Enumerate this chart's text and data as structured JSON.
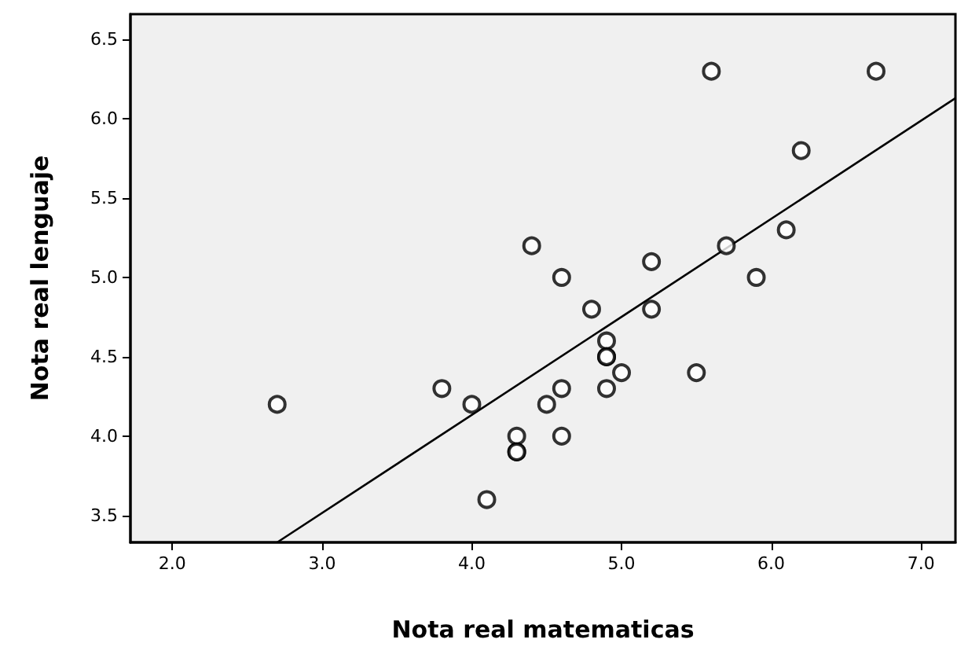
{
  "chart_data": {
    "type": "scatter",
    "xlabel": "Nota real matematicas",
    "ylabel": "Nota real lenguaje",
    "xlim": [
      1.72,
      7.23
    ],
    "xticks": [
      {
        "value": 2,
        "label": "2.0"
      },
      {
        "value": 3,
        "label": "3.0"
      },
      {
        "value": 4,
        "label": "4.0"
      },
      {
        "value": 5,
        "label": "5.0"
      },
      {
        "value": 6,
        "label": "6.0"
      },
      {
        "value": 7,
        "label": "7.0"
      }
    ],
    "ylim": [
      3.33,
      6.66
    ],
    "yticks": [
      {
        "value": 3.5,
        "label": "3.5"
      },
      {
        "value": 4,
        "label": "4.0"
      },
      {
        "value": 4.5,
        "label": "4.5"
      },
      {
        "value": 5,
        "label": "5.0"
      },
      {
        "value": 5.5,
        "label": "5.5"
      },
      {
        "value": 6,
        "label": "6.0"
      },
      {
        "value": 6.5,
        "label": "6.5"
      }
    ],
    "grid": false,
    "marker": "circle",
    "series": [
      {
        "type": "scatter",
        "color": "#000000",
        "x": [
          2.7,
          3.8,
          4.0,
          4.1,
          4.3,
          4.3,
          4.3,
          4.4,
          4.5,
          4.6,
          4.6,
          4.6,
          4.8,
          4.9,
          4.9,
          4.9,
          4.9,
          5.0,
          5.2,
          5.2,
          5.5,
          5.6,
          5.7,
          5.9,
          6.1,
          6.2,
          6.7
        ],
        "values": [
          4.2,
          4.3,
          4.2,
          3.6,
          4.0,
          3.9,
          3.9,
          5.2,
          4.2,
          4.3,
          4.0,
          5.0,
          4.8,
          4.6,
          4.5,
          4.5,
          4.3,
          4.4,
          5.1,
          4.8,
          4.4,
          6.3,
          5.2,
          5.0,
          5.3,
          5.8,
          6.3
        ]
      },
      {
        "type": "line",
        "color": "#000000",
        "x": [
          2.7,
          7.23
        ],
        "values": [
          3.33,
          6.13
        ],
        "marker": "none",
        "line_style": "solid"
      }
    ]
  }
}
